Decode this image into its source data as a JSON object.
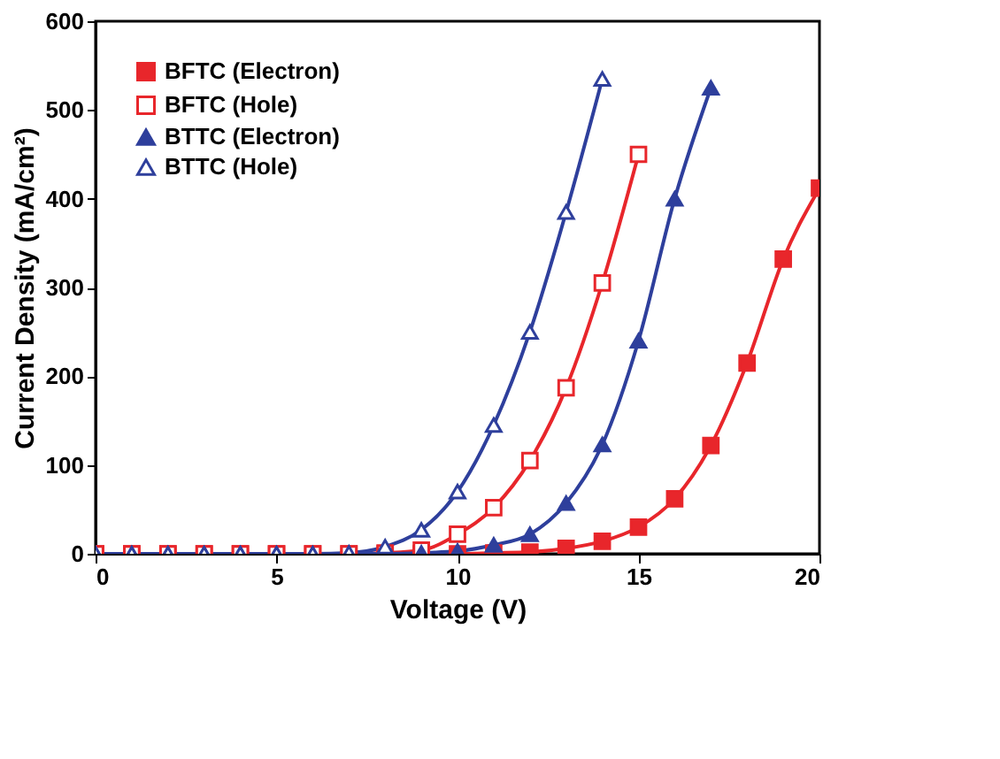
{
  "chart_data": {
    "type": "line",
    "xlabel": "Voltage (V)",
    "ylabel": "Current Density (mA/cm²)",
    "xlim": [
      0,
      20
    ],
    "ylim": [
      0,
      600
    ],
    "xticks": [
      0,
      5,
      10,
      15,
      20
    ],
    "yticks": [
      0,
      100,
      200,
      300,
      400,
      500,
      600
    ],
    "grid": false,
    "legend": "top left",
    "line_style": "solid",
    "series": [
      {
        "name": "BFTC (Electron)",
        "color": "#e8262b",
        "marker": "square",
        "x": [
          0,
          1,
          2,
          3,
          4,
          5,
          6,
          7,
          8,
          9,
          10,
          11,
          12,
          13,
          14,
          15,
          16,
          17,
          18,
          19,
          20
        ],
        "values": [
          0,
          0,
          0,
          0,
          0,
          0,
          0,
          0,
          0,
          0,
          0,
          1,
          2,
          6,
          14,
          30,
          62,
          122,
          215,
          332,
          412
        ]
      },
      {
        "name": "BFTC (Hole)",
        "color": "#e8262b",
        "marker": "square",
        "x": [
          0,
          1,
          2,
          3,
          4,
          5,
          6,
          7,
          8,
          9,
          10,
          11,
          12,
          13,
          14,
          15
        ],
        "values": [
          0,
          0,
          0,
          0,
          0,
          0,
          0,
          0,
          1,
          4,
          22,
          52,
          105,
          187,
          305,
          450
        ]
      },
      {
        "name": "BTTC (Electron)",
        "color": "#2e3f9c",
        "marker": "triangle",
        "x": [
          0,
          1,
          2,
          3,
          4,
          5,
          6,
          7,
          8,
          9,
          10,
          11,
          12,
          13,
          14,
          15,
          16,
          17
        ],
        "values": [
          0,
          0,
          0,
          0,
          0,
          0,
          0,
          0,
          0,
          1,
          3,
          10,
          22,
          57,
          123,
          240,
          400,
          525
        ]
      },
      {
        "name": "BTTC (Hole)",
        "color": "#2e3f9c",
        "marker": "triangle",
        "x": [
          0,
          1,
          2,
          3,
          4,
          5,
          6,
          7,
          8,
          9,
          10,
          11,
          12,
          13,
          14
        ],
        "values": [
          0,
          0,
          0,
          0,
          0,
          0,
          0,
          1,
          8,
          27,
          70,
          145,
          250,
          385,
          535
        ]
      }
    ]
  }
}
